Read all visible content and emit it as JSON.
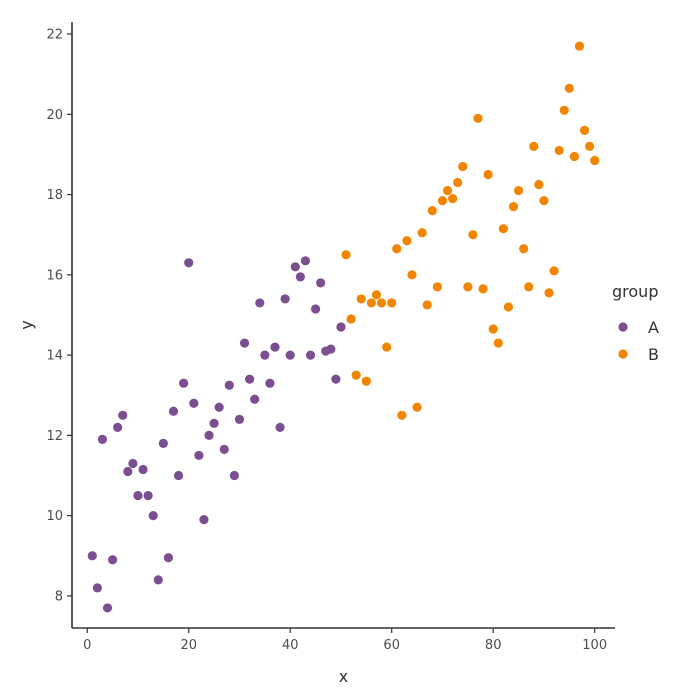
{
  "chart_data": {
    "type": "scatter",
    "xlabel": "x",
    "ylabel": "y",
    "xlim": [
      -3,
      104
    ],
    "ylim": [
      7.2,
      22.3
    ],
    "xticks": [
      0,
      20,
      40,
      60,
      80,
      100
    ],
    "yticks": [
      8,
      10,
      12,
      14,
      16,
      18,
      20,
      22
    ],
    "grid": false,
    "legend": {
      "title": "group",
      "position": "right"
    },
    "series": [
      {
        "name": "A",
        "color": "#7B4F8F",
        "points": [
          [
            1,
            9.0
          ],
          [
            2,
            8.2
          ],
          [
            3,
            11.9
          ],
          [
            4,
            7.7
          ],
          [
            5,
            8.9
          ],
          [
            6,
            12.2
          ],
          [
            7,
            12.5
          ],
          [
            8,
            11.1
          ],
          [
            9,
            11.3
          ],
          [
            10,
            10.5
          ],
          [
            11,
            11.15
          ],
          [
            12,
            10.5
          ],
          [
            13,
            10.0
          ],
          [
            14,
            8.4
          ],
          [
            15,
            11.8
          ],
          [
            16,
            8.95
          ],
          [
            17,
            12.6
          ],
          [
            18,
            11.0
          ],
          [
            19,
            13.3
          ],
          [
            20,
            16.3
          ],
          [
            21,
            12.8
          ],
          [
            22,
            11.5
          ],
          [
            23,
            9.9
          ],
          [
            24,
            12.0
          ],
          [
            25,
            12.3
          ],
          [
            26,
            12.7
          ],
          [
            27,
            11.65
          ],
          [
            28,
            13.25
          ],
          [
            29,
            11.0
          ],
          [
            30,
            12.4
          ],
          [
            31,
            14.3
          ],
          [
            32,
            13.4
          ],
          [
            33,
            12.9
          ],
          [
            34,
            15.3
          ],
          [
            35,
            14.0
          ],
          [
            36,
            13.3
          ],
          [
            37,
            14.2
          ],
          [
            38,
            12.2
          ],
          [
            39,
            15.4
          ],
          [
            40,
            14.0
          ],
          [
            41,
            16.2
          ],
          [
            42,
            15.95
          ],
          [
            43,
            16.35
          ],
          [
            44,
            14.0
          ],
          [
            45,
            15.15
          ],
          [
            46,
            15.8
          ],
          [
            47,
            14.1
          ],
          [
            48,
            14.15
          ],
          [
            49,
            13.4
          ],
          [
            50,
            14.7
          ]
        ]
      },
      {
        "name": "B",
        "color": "#F28500",
        "points": [
          [
            51,
            16.5
          ],
          [
            52,
            14.9
          ],
          [
            53,
            13.5
          ],
          [
            54,
            15.4
          ],
          [
            55,
            13.35
          ],
          [
            56,
            15.3
          ],
          [
            57,
            15.5
          ],
          [
            58,
            15.3
          ],
          [
            59,
            14.2
          ],
          [
            60,
            15.3
          ],
          [
            61,
            16.65
          ],
          [
            62,
            12.5
          ],
          [
            63,
            16.85
          ],
          [
            64,
            16.0
          ],
          [
            65,
            12.7
          ],
          [
            66,
            17.05
          ],
          [
            67,
            15.25
          ],
          [
            68,
            17.6
          ],
          [
            69,
            15.7
          ],
          [
            70,
            17.85
          ],
          [
            71,
            18.1
          ],
          [
            72,
            17.9
          ],
          [
            73,
            18.3
          ],
          [
            74,
            18.7
          ],
          [
            75,
            15.7
          ],
          [
            76,
            17.0
          ],
          [
            77,
            19.9
          ],
          [
            78,
            15.65
          ],
          [
            79,
            18.5
          ],
          [
            80,
            14.65
          ],
          [
            81,
            14.3
          ],
          [
            82,
            17.15
          ],
          [
            83,
            15.2
          ],
          [
            84,
            17.7
          ],
          [
            85,
            18.1
          ],
          [
            86,
            16.65
          ],
          [
            87,
            15.7
          ],
          [
            88,
            19.2
          ],
          [
            89,
            18.25
          ],
          [
            90,
            17.85
          ],
          [
            91,
            15.55
          ],
          [
            92,
            16.1
          ],
          [
            93,
            19.1
          ],
          [
            94,
            20.1
          ],
          [
            95,
            20.65
          ],
          [
            96,
            18.95
          ],
          [
            97,
            21.7
          ],
          [
            98,
            19.6
          ],
          [
            99,
            19.2
          ],
          [
            100,
            18.85
          ]
        ]
      }
    ]
  }
}
